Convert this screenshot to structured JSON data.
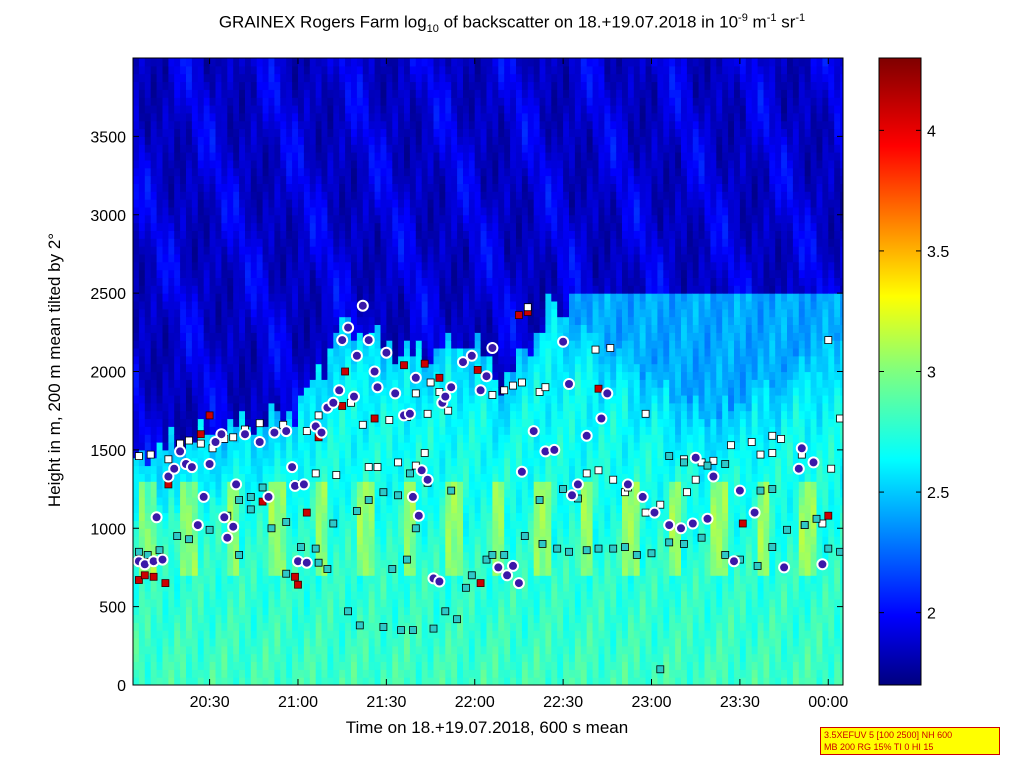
{
  "title": {
    "prefix": "GRAINEX Rogers Farm log",
    "prefix_sub": "10",
    "middle": " of backscatter on 18.+19.07.2018 in 10",
    "exp1": "-9",
    "unit1": " m",
    "exp2": "-1",
    "unit2": " sr",
    "exp3": "-1"
  },
  "info_box": {
    "line1": "3.5XEFUV 5 [100 2500] NH 600",
    "line2": "MB 200 RG 15% TI 0 HI 15"
  },
  "chart_data": {
    "type": "heatmap",
    "title": "GRAINEX Rogers Farm log10 of backscatter on 18.+19.07.2018 in 10^-9 m^-1 sr^-1",
    "xlabel": "Time on 18.+19.07.2018, 600 s mean",
    "ylabel": "Height in m, 200 m mean tilted by 2°",
    "xlim_minutes_after_20_00": [
      4,
      245
    ],
    "ylim": [
      0,
      4000
    ],
    "x_ticks": [
      {
        "minute": 30,
        "label": "20:30"
      },
      {
        "minute": 60,
        "label": "21:00"
      },
      {
        "minute": 90,
        "label": "21:30"
      },
      {
        "minute": 120,
        "label": "22:00"
      },
      {
        "minute": 150,
        "label": "22:30"
      },
      {
        "minute": 180,
        "label": "23:00"
      },
      {
        "minute": 210,
        "label": "23:30"
      },
      {
        "minute": 240,
        "label": "00:00"
      }
    ],
    "y_ticks": [
      0,
      500,
      1000,
      1500,
      2000,
      2500,
      3000,
      3500
    ],
    "colorbar": {
      "colormap": "jet",
      "range": [
        1.7,
        4.3
      ],
      "ticks": [
        2,
        2.5,
        3,
        3.5,
        4
      ]
    },
    "approx_field_profile": [
      {
        "minute": 5,
        "top_of_aerosol_layer_m": 1450
      },
      {
        "minute": 30,
        "top_of_aerosol_layer_m": 1600
      },
      {
        "minute": 60,
        "top_of_aerosol_layer_m": 1750
      },
      {
        "minute": 75,
        "top_of_aerosol_layer_m": 2300
      },
      {
        "minute": 100,
        "top_of_aerosol_layer_m": 2100
      },
      {
        "minute": 120,
        "top_of_aerosol_layer_m": 2200
      },
      {
        "minute": 130,
        "top_of_aerosol_layer_m": 1900
      },
      {
        "minute": 145,
        "top_of_aerosol_layer_m": 2400
      },
      {
        "minute": 170,
        "top_of_aerosol_layer_m": 2100
      },
      {
        "minute": 200,
        "top_of_aerosol_layer_m": 1700
      },
      {
        "minute": 245,
        "top_of_aerosol_layer_m": 2200
      }
    ],
    "series": [
      {
        "marker": "red-square",
        "values": [
          [
            6,
            670
          ],
          [
            8,
            700
          ],
          [
            11,
            690
          ],
          [
            15,
            650
          ],
          [
            16,
            1280
          ],
          [
            27,
            1600
          ],
          [
            30,
            1720
          ],
          [
            48,
            1170
          ],
          [
            59,
            690
          ],
          [
            60,
            640
          ],
          [
            63,
            1100
          ],
          [
            67,
            1580
          ],
          [
            75,
            1780
          ],
          [
            76,
            2000
          ],
          [
            86,
            1700
          ],
          [
            96,
            2040
          ],
          [
            103,
            2050
          ],
          [
            108,
            1960
          ],
          [
            121,
            2010
          ],
          [
            122,
            650
          ],
          [
            135,
            2360
          ],
          [
            138,
            2380
          ],
          [
            162,
            1890
          ],
          [
            211,
            1030
          ],
          [
            240,
            1080
          ]
        ]
      },
      {
        "marker": "white-square",
        "values": [
          [
            6,
            1460
          ],
          [
            10,
            1470
          ],
          [
            16,
            1440
          ],
          [
            20,
            1540
          ],
          [
            23,
            1560
          ],
          [
            27,
            1540
          ],
          [
            31,
            1510
          ],
          [
            35,
            1570
          ],
          [
            38,
            1580
          ],
          [
            42,
            1630
          ],
          [
            47,
            1670
          ],
          [
            52,
            1620
          ],
          [
            55,
            1660
          ],
          [
            63,
            1620
          ],
          [
            67,
            1720
          ],
          [
            78,
            1800
          ],
          [
            82,
            1660
          ],
          [
            91,
            1690
          ],
          [
            97,
            1710
          ],
          [
            100,
            1860
          ],
          [
            104,
            1730
          ],
          [
            105,
            1930
          ],
          [
            108,
            1870
          ],
          [
            111,
            1750
          ],
          [
            126,
            1850
          ],
          [
            130,
            1880
          ],
          [
            133,
            1910
          ],
          [
            136,
            1930
          ],
          [
            138,
            2410
          ],
          [
            142,
            1870
          ],
          [
            144,
            1900
          ],
          [
            161,
            2140
          ],
          [
            166,
            2150
          ],
          [
            178,
            1730
          ],
          [
            191,
            1440
          ],
          [
            197,
            1420
          ],
          [
            207,
            1530
          ],
          [
            214,
            1550
          ],
          [
            221,
            1590
          ],
          [
            224,
            1570
          ],
          [
            240,
            2200
          ],
          [
            244,
            1700
          ],
          [
            59,
            1280
          ],
          [
            66,
            1350
          ],
          [
            73,
            1340
          ],
          [
            84,
            1390
          ],
          [
            87,
            1390
          ],
          [
            94,
            1420
          ],
          [
            100,
            1400
          ],
          [
            103,
            1480
          ],
          [
            158,
            1350
          ],
          [
            162,
            1370
          ],
          [
            167,
            1310
          ],
          [
            171,
            1230
          ],
          [
            172,
            1260
          ],
          [
            178,
            1100
          ],
          [
            183,
            1150
          ],
          [
            192,
            1230
          ],
          [
            195,
            1310
          ],
          [
            201,
            1430
          ],
          [
            217,
            1470
          ],
          [
            221,
            1480
          ],
          [
            231,
            1470
          ],
          [
            241,
            1380
          ],
          [
            232,
            1020
          ],
          [
            238,
            1030
          ]
        ]
      },
      {
        "marker": "cyan-square",
        "values": [
          [
            6,
            850
          ],
          [
            9,
            830
          ],
          [
            13,
            860
          ],
          [
            19,
            950
          ],
          [
            23,
            930
          ],
          [
            30,
            990
          ],
          [
            36,
            1080
          ],
          [
            40,
            1180
          ],
          [
            44,
            1200
          ],
          [
            48,
            1260
          ],
          [
            51,
            1000
          ],
          [
            56,
            1040
          ],
          [
            61,
            880
          ],
          [
            66,
            870
          ],
          [
            72,
            1030
          ],
          [
            80,
            1110
          ],
          [
            84,
            1180
          ],
          [
            89,
            1230
          ],
          [
            94,
            1210
          ],
          [
            98,
            1350
          ],
          [
            104,
            1290
          ],
          [
            112,
            1240
          ],
          [
            117,
            620
          ],
          [
            119,
            700
          ],
          [
            124,
            800
          ],
          [
            126,
            830
          ],
          [
            130,
            830
          ],
          [
            137,
            950
          ],
          [
            143,
            900
          ],
          [
            148,
            870
          ],
          [
            152,
            850
          ],
          [
            158,
            860
          ],
          [
            162,
            870
          ],
          [
            167,
            870
          ],
          [
            171,
            880
          ],
          [
            175,
            830
          ],
          [
            180,
            840
          ],
          [
            186,
            910
          ],
          [
            191,
            900
          ],
          [
            197,
            940
          ],
          [
            205,
            830
          ],
          [
            210,
            800
          ],
          [
            216,
            760
          ],
          [
            221,
            880
          ],
          [
            226,
            990
          ],
          [
            232,
            1020
          ],
          [
            236,
            1060
          ],
          [
            240,
            870
          ],
          [
            244,
            850
          ],
          [
            186,
            1460
          ],
          [
            191,
            1420
          ],
          [
            199,
            1400
          ],
          [
            205,
            1410
          ],
          [
            97,
            800
          ],
          [
            100,
            1000
          ],
          [
            110,
            470
          ],
          [
            114,
            420
          ],
          [
            106,
            360
          ],
          [
            99,
            350
          ],
          [
            95,
            350
          ],
          [
            183,
            100
          ],
          [
            40,
            830
          ],
          [
            44,
            1120
          ],
          [
            92,
            740
          ],
          [
            56,
            710
          ],
          [
            67,
            780
          ],
          [
            70,
            740
          ],
          [
            77,
            470
          ],
          [
            81,
            380
          ],
          [
            89,
            370
          ],
          [
            217,
            1240
          ],
          [
            221,
            1250
          ],
          [
            142,
            1180
          ],
          [
            150,
            1250
          ],
          [
            155,
            1190
          ]
        ]
      },
      {
        "marker": "blue-circle",
        "values": [
          [
            6,
            790
          ],
          [
            8,
            770
          ],
          [
            11,
            790
          ],
          [
            12,
            1070
          ],
          [
            14,
            800
          ],
          [
            16,
            1330
          ],
          [
            18,
            1380
          ],
          [
            20,
            1490
          ],
          [
            22,
            1410
          ],
          [
            24,
            1390
          ],
          [
            26,
            1020
          ],
          [
            28,
            1200
          ],
          [
            30,
            1410
          ],
          [
            32,
            1550
          ],
          [
            34,
            1600
          ],
          [
            35,
            1070
          ],
          [
            36,
            940
          ],
          [
            38,
            1010
          ],
          [
            39,
            1280
          ],
          [
            42,
            1600
          ],
          [
            47,
            1550
          ],
          [
            50,
            1200
          ],
          [
            52,
            1610
          ],
          [
            56,
            1620
          ],
          [
            58,
            1390
          ],
          [
            59,
            1270
          ],
          [
            60,
            790
          ],
          [
            62,
            1280
          ],
          [
            63,
            780
          ],
          [
            66,
            1650
          ],
          [
            68,
            1610
          ],
          [
            70,
            1770
          ],
          [
            72,
            1800
          ],
          [
            74,
            1880
          ],
          [
            75,
            2200
          ],
          [
            77,
            2280
          ],
          [
            79,
            1840
          ],
          [
            80,
            2100
          ],
          [
            82,
            2420
          ],
          [
            84,
            2200
          ],
          [
            86,
            2000
          ],
          [
            87,
            1900
          ],
          [
            90,
            2120
          ],
          [
            93,
            1860
          ],
          [
            96,
            1720
          ],
          [
            98,
            1730
          ],
          [
            99,
            1200
          ],
          [
            100,
            1960
          ],
          [
            101,
            1080
          ],
          [
            102,
            1370
          ],
          [
            104,
            1310
          ],
          [
            106,
            680
          ],
          [
            108,
            660
          ],
          [
            109,
            1800
          ],
          [
            110,
            1840
          ],
          [
            112,
            1900
          ],
          [
            116,
            2060
          ],
          [
            119,
            2100
          ],
          [
            122,
            1880
          ],
          [
            124,
            1970
          ],
          [
            126,
            2150
          ],
          [
            128,
            750
          ],
          [
            131,
            700
          ],
          [
            133,
            760
          ],
          [
            135,
            650
          ],
          [
            136,
            1360
          ],
          [
            140,
            1620
          ],
          [
            144,
            1490
          ],
          [
            147,
            1500
          ],
          [
            150,
            2190
          ],
          [
            152,
            1920
          ],
          [
            153,
            1210
          ],
          [
            155,
            1280
          ],
          [
            158,
            1590
          ],
          [
            163,
            1700
          ],
          [
            165,
            1860
          ],
          [
            172,
            1280
          ],
          [
            177,
            1200
          ],
          [
            181,
            1100
          ],
          [
            186,
            1020
          ],
          [
            190,
            1000
          ],
          [
            194,
            1030
          ],
          [
            195,
            1450
          ],
          [
            199,
            1060
          ],
          [
            201,
            1330
          ],
          [
            208,
            790
          ],
          [
            210,
            1240
          ],
          [
            215,
            1100
          ],
          [
            225,
            750
          ],
          [
            230,
            1380
          ],
          [
            235,
            1420
          ],
          [
            231,
            1510
          ],
          [
            238,
            770
          ]
        ]
      }
    ]
  }
}
